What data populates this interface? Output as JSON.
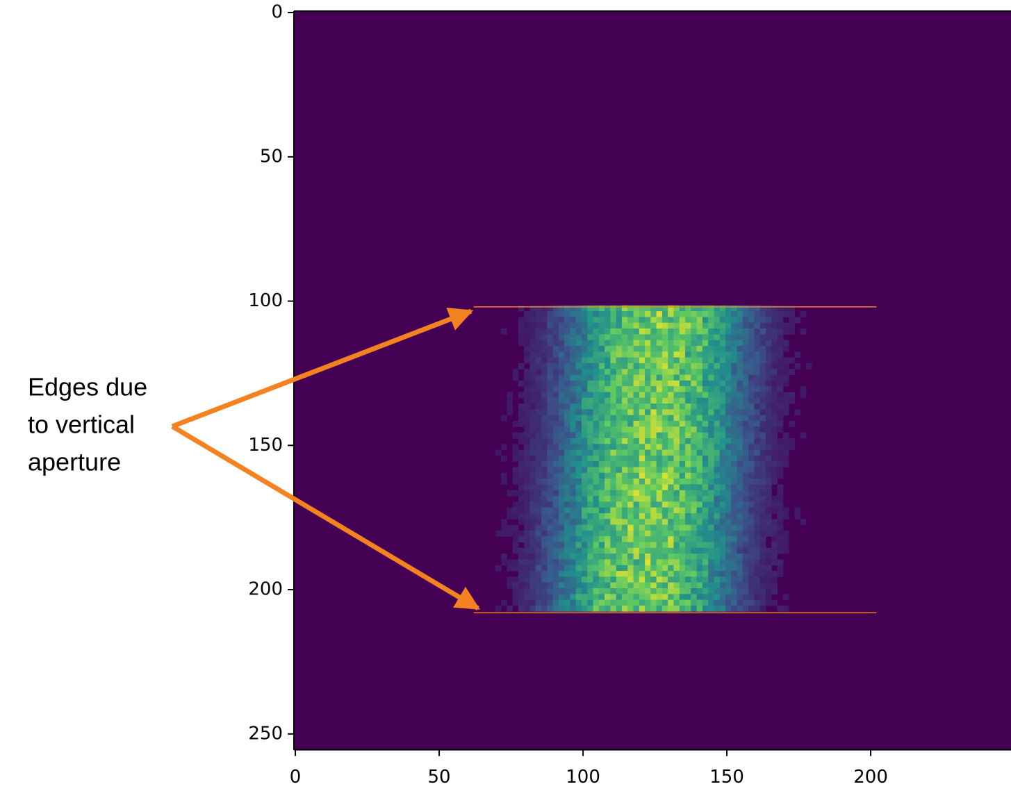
{
  "chart_data": {
    "type": "image",
    "xlim": [
      -0.5,
      255.5
    ],
    "ylim": [
      255.5,
      -0.5
    ],
    "xticks": [
      0,
      50,
      100,
      150,
      200
    ],
    "yticks": [
      0,
      50,
      100,
      150,
      200,
      250
    ],
    "edge_lines": [
      {
        "y": 102,
        "xmin": 62,
        "xmax": 202
      },
      {
        "y": 208,
        "xmin": 62,
        "xmax": 202
      }
    ],
    "edge_line_color": "#f58220",
    "annotation": [
      "Edges due",
      "to vertical",
      "aperture"
    ]
  }
}
